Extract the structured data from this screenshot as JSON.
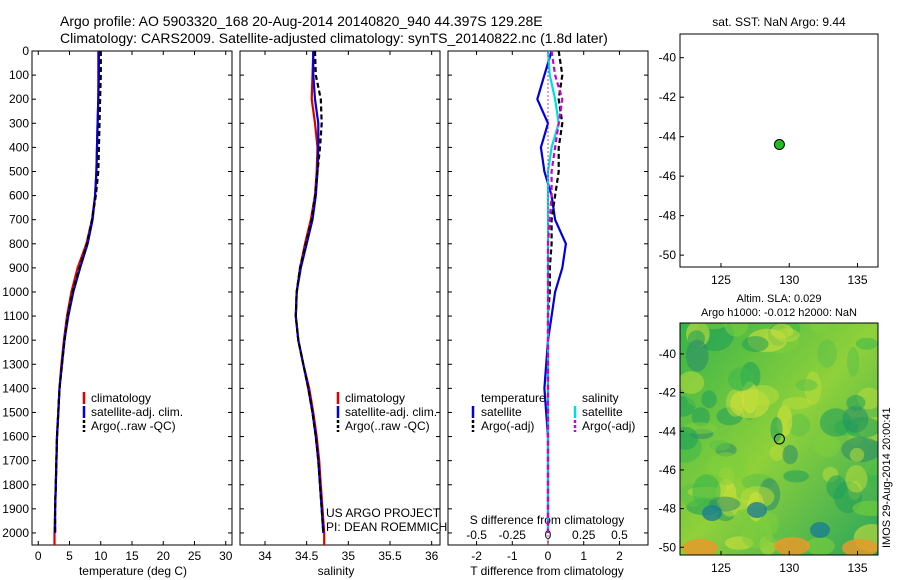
{
  "header": {
    "line1": "Argo profile: AO 5903320_168 20-Aug-2014 20140820_940 44.397S 129.28E",
    "line2": "Climatology: CARS2009. Satellite-adjusted climatology: synTS_20140822.nc (1.8d later)"
  },
  "credits": {
    "project": "US ARGO PROJECT",
    "pi": "PI: DEAN ROEMMICH",
    "stamp": "IMOS 29-Aug-2014 20:00:41"
  },
  "colors": {
    "climatology": "#dd0000",
    "satellite": "#0000dd",
    "argo": "#000000",
    "sal_satellite": "#00dddd",
    "sal_argo": "#cc00cc",
    "marker": "#22bb22"
  },
  "chart_data": [
    {
      "type": "line",
      "id": "temperature",
      "xlabel": "temperature (deg C)",
      "xlim": [
        -1,
        31
      ],
      "xticks": [
        0,
        5,
        10,
        15,
        20,
        25,
        30
      ],
      "ylim": [
        0,
        2050
      ],
      "yticks": [
        0,
        100,
        200,
        300,
        400,
        500,
        600,
        700,
        800,
        900,
        1000,
        1100,
        1200,
        1300,
        1400,
        1500,
        1600,
        1700,
        1800,
        1900,
        2000
      ],
      "y_reversed": true,
      "legend": [
        "climatology",
        "satellite-adj. clim.",
        "Argo(..raw -QC)"
      ],
      "series": [
        {
          "name": "climatology",
          "style": "solid",
          "color": "#dd0000",
          "x": [
            9.6,
            9.6,
            9.6,
            9.5,
            9.4,
            9.3,
            9.1,
            8.6,
            7.7,
            6.3,
            5.3,
            4.6,
            4.1,
            3.7,
            3.4,
            3.2,
            3.0,
            2.9,
            2.8,
            2.7,
            2.6,
            2.6
          ],
          "y": [
            0,
            100,
            200,
            300,
            400,
            500,
            600,
            700,
            800,
            900,
            1000,
            1100,
            1200,
            1300,
            1400,
            1500,
            1600,
            1700,
            1800,
            1900,
            2000,
            2050
          ]
        },
        {
          "name": "satellite-adj. clim.",
          "style": "solid",
          "color": "#0000dd",
          "x": [
            9.7,
            9.7,
            9.6,
            9.5,
            9.4,
            9.3,
            9.1,
            8.7,
            7.9,
            6.7,
            5.6,
            4.8,
            4.2,
            3.8,
            3.4,
            3.2,
            3.0,
            2.9,
            2.8,
            2.7,
            2.7
          ],
          "y": [
            0,
            100,
            200,
            300,
            400,
            500,
            600,
            700,
            800,
            900,
            1000,
            1100,
            1200,
            1300,
            1400,
            1500,
            1600,
            1700,
            1800,
            1900,
            2000
          ]
        },
        {
          "name": "Argo(..raw -QC)",
          "style": "dashed",
          "color": "#000000",
          "x": [
            10.0,
            10.0,
            9.9,
            9.8,
            9.7,
            9.6,
            9.2,
            8.6,
            7.8,
            6.6,
            5.5,
            4.7,
            4.2,
            3.8,
            3.4,
            3.2,
            3.0,
            2.9,
            2.8,
            2.7,
            2.7
          ],
          "y": [
            0,
            100,
            200,
            300,
            400,
            500,
            600,
            700,
            800,
            900,
            1000,
            1100,
            1200,
            1300,
            1400,
            1500,
            1600,
            1700,
            1800,
            1900,
            2000
          ]
        }
      ]
    },
    {
      "type": "line",
      "id": "salinity",
      "xlabel": "salinity",
      "xlim": [
        33.7,
        36.1
      ],
      "xticks": [
        34,
        34.5,
        35,
        35.5,
        36
      ],
      "ylim": [
        0,
        2050
      ],
      "y_reversed": true,
      "legend": [
        "climatology",
        "satellite-adj. clim.",
        "Argo(..raw -QC)"
      ],
      "series": [
        {
          "name": "climatology",
          "style": "solid",
          "color": "#dd0000",
          "x": [
            34.58,
            34.57,
            34.56,
            34.6,
            34.63,
            34.62,
            34.6,
            34.55,
            34.48,
            34.42,
            34.38,
            34.37,
            34.4,
            34.46,
            34.53,
            34.58,
            34.62,
            34.65,
            34.67,
            34.69,
            34.71,
            34.71
          ],
          "y": [
            0,
            100,
            200,
            300,
            400,
            500,
            600,
            700,
            800,
            900,
            1000,
            1100,
            1200,
            1300,
            1400,
            1500,
            1600,
            1700,
            1800,
            1900,
            2000,
            2050
          ]
        },
        {
          "name": "satellite-adj. clim.",
          "style": "solid",
          "color": "#0000dd",
          "x": [
            34.58,
            34.58,
            34.6,
            34.64,
            34.64,
            34.63,
            34.61,
            34.57,
            34.5,
            34.43,
            34.38,
            34.37,
            34.4,
            34.46,
            34.52,
            34.57,
            34.61,
            34.64,
            34.66,
            34.68,
            34.7
          ],
          "y": [
            0,
            100,
            200,
            300,
            400,
            500,
            600,
            700,
            800,
            900,
            1000,
            1100,
            1200,
            1300,
            1400,
            1500,
            1600,
            1700,
            1800,
            1900,
            2000
          ]
        },
        {
          "name": "Argo(..raw -QC)",
          "style": "dashed",
          "color": "#000000",
          "x": [
            34.6,
            34.61,
            34.67,
            34.68,
            34.66,
            34.63,
            34.6,
            34.56,
            34.49,
            34.42,
            34.38,
            34.37,
            34.4,
            34.46,
            34.52,
            34.57,
            34.61,
            34.64,
            34.66,
            34.68,
            34.7
          ],
          "y": [
            0,
            100,
            200,
            300,
            400,
            500,
            600,
            700,
            800,
            900,
            1000,
            1100,
            1200,
            1300,
            1400,
            1500,
            1600,
            1700,
            1800,
            1900,
            2000
          ]
        }
      ]
    },
    {
      "type": "line",
      "id": "difference",
      "xlabel": "T difference from climatology",
      "xlabel_top": "S difference from climatology",
      "xlim": [
        -2.8,
        2.8
      ],
      "xticks": [
        -2,
        -1,
        0,
        1,
        2
      ],
      "xticklabels": [
        "-2",
        "-1",
        "0",
        "1",
        "2"
      ],
      "xticks_top": [
        -2,
        -1,
        0,
        1,
        2
      ],
      "xticklabels_top": [
        "-0.5",
        "-0.25",
        "0",
        "0.25",
        "0.5"
      ],
      "ylim": [
        0,
        2050
      ],
      "y_reversed": true,
      "legend_headers": [
        "temperature",
        "salinity"
      ],
      "legend_temperature": [
        "satellite",
        "Argo(-adj)"
      ],
      "legend_salinity": [
        "satellite",
        "Argo(-adj)"
      ],
      "series": [
        {
          "name": "T satellite",
          "style": "solid",
          "color": "#0000dd",
          "x": [
            0.1,
            -0.1,
            -0.3,
            0.0,
            -0.2,
            -0.1,
            0.1,
            0.2,
            0.5,
            0.4,
            0.2,
            0.1,
            0.0,
            -0.05,
            -0.1,
            -0.05,
            0.0,
            0.0,
            0.0,
            0.0,
            0.0
          ],
          "y": [
            0,
            100,
            200,
            300,
            400,
            500,
            600,
            700,
            800,
            900,
            1000,
            1100,
            1200,
            1300,
            1400,
            1500,
            1600,
            1700,
            1800,
            1900,
            2000
          ]
        },
        {
          "name": "T Argo(-adj)",
          "style": "dashed",
          "color": "#000000",
          "x": [
            0.3,
            0.4,
            0.3,
            0.4,
            0.3,
            0.3,
            0.2,
            0.1,
            0.1,
            0.05,
            0.05,
            0.0,
            0.0,
            0.0,
            0.0,
            0.0,
            0.0,
            0.0,
            0.0,
            0.0,
            0.0
          ],
          "y": [
            0,
            100,
            200,
            300,
            400,
            500,
            600,
            700,
            800,
            900,
            1000,
            1100,
            1200,
            1300,
            1400,
            1500,
            1600,
            1700,
            1800,
            1900,
            2000
          ]
        },
        {
          "name": "S satellite",
          "style": "solid",
          "color": "#00dddd",
          "x": [
            0.0,
            0.05,
            0.2,
            0.3,
            0.1,
            0.0,
            0.0,
            0.0,
            0.0,
            0.0,
            0.0,
            0.0,
            0.0,
            0.0,
            0.0,
            0.0,
            0.0,
            0.0,
            0.0,
            0.0,
            0.0
          ],
          "y": [
            0,
            100,
            200,
            300,
            400,
            500,
            600,
            700,
            800,
            900,
            1000,
            1100,
            1200,
            1300,
            1400,
            1500,
            1600,
            1700,
            1800,
            1900,
            2000
          ]
        },
        {
          "name": "S Argo(-adj)",
          "style": "dashed",
          "color": "#cc00cc",
          "x": [
            0.1,
            0.2,
            0.4,
            0.3,
            0.2,
            0.1,
            0.1,
            0.05,
            0.0,
            0.0,
            0.0,
            0.0,
            0.0,
            0.0,
            0.0,
            0.0,
            0.0,
            0.0,
            0.0,
            0.0,
            0.0
          ],
          "y": [
            0,
            100,
            200,
            300,
            400,
            500,
            600,
            700,
            800,
            900,
            1000,
            1100,
            1200,
            1300,
            1400,
            1500,
            1600,
            1700,
            1800,
            1900,
            2000
          ]
        }
      ]
    },
    {
      "type": "scatter",
      "id": "sst_map",
      "title": "sat. SST: NaN Argo: 9.44",
      "xlim": [
        122,
        136.5
      ],
      "ylim": [
        -50.6,
        -38.8
      ],
      "xticks": [
        125,
        130,
        135
      ],
      "yticks": [
        -40,
        -42,
        -44,
        -46,
        -48,
        -50
      ],
      "points": [
        {
          "x": 129.28,
          "y": -44.397
        }
      ]
    },
    {
      "type": "heatmap",
      "id": "sla_map",
      "title": "Altim. SLA: 0.029",
      "subtitle": "Argo h1000: -0.012 h2000: NaN",
      "xlim": [
        122,
        136.5
      ],
      "ylim": [
        -50.4,
        -38.4
      ],
      "xticks": [
        125,
        130,
        135
      ],
      "yticks": [
        -40,
        -42,
        -44,
        -46,
        -48,
        -50
      ],
      "points": [
        {
          "x": 129.28,
          "y": -44.397
        }
      ]
    }
  ]
}
